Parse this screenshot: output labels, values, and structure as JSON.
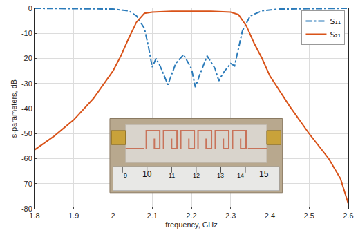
{
  "chart_data": {
    "type": "line",
    "x_label": "frequency, GHz",
    "y_label": "s-parameters, dB",
    "xlim": [
      1.8,
      2.6
    ],
    "xticks": [
      1.8,
      1.9,
      2,
      2.1,
      2.2,
      2.3,
      2.4,
      2.5,
      2.6
    ],
    "ylim": [
      -80,
      0
    ],
    "yticks": [
      -80,
      -70,
      -60,
      -50,
      -40,
      -30,
      -20,
      -10,
      0
    ],
    "grid": true,
    "legend": "top-right",
    "series": [
      {
        "name": "S₁₁",
        "color": "#2b7bba",
        "line_style": "dashdot",
        "x": [
          1.8,
          1.9,
          2.0,
          2.04,
          2.06,
          2.08,
          2.09,
          2.1,
          2.11,
          2.12,
          2.14,
          2.16,
          2.18,
          2.2,
          2.21,
          2.22,
          2.24,
          2.26,
          2.27,
          2.28,
          2.3,
          2.31,
          2.32,
          2.33,
          2.35,
          2.38,
          2.42,
          2.5,
          2.6
        ],
        "values": [
          0,
          -0.1,
          -0.3,
          -1,
          -3,
          -8,
          -15,
          -23.5,
          -20,
          -23,
          -30.5,
          -22,
          -18.5,
          -24,
          -31.5,
          -27,
          -19,
          -24,
          -29,
          -26,
          -22,
          -23,
          -16,
          -9,
          -3,
          -1,
          -0.3,
          -0.1,
          0
        ]
      },
      {
        "name": "S₂₁",
        "color": "#d95319",
        "line_style": "solid",
        "x": [
          1.8,
          1.85,
          1.9,
          1.95,
          2.0,
          2.02,
          2.04,
          2.06,
          2.08,
          2.1,
          2.15,
          2.2,
          2.25,
          2.3,
          2.32,
          2.34,
          2.36,
          2.38,
          2.4,
          2.45,
          2.5,
          2.55,
          2.58,
          2.6
        ],
        "values": [
          -56.5,
          -51,
          -44.5,
          -36,
          -25,
          -19,
          -12,
          -5.5,
          -2,
          -1.5,
          -1.2,
          -1.2,
          -1.2,
          -1.5,
          -2.5,
          -7,
          -14,
          -20,
          -27,
          -39,
          -50,
          -60,
          -68,
          -78
        ]
      }
    ],
    "inset_ruler_labels": [
      "9",
      "10",
      "11",
      "12",
      "13",
      "14",
      "15"
    ]
  }
}
